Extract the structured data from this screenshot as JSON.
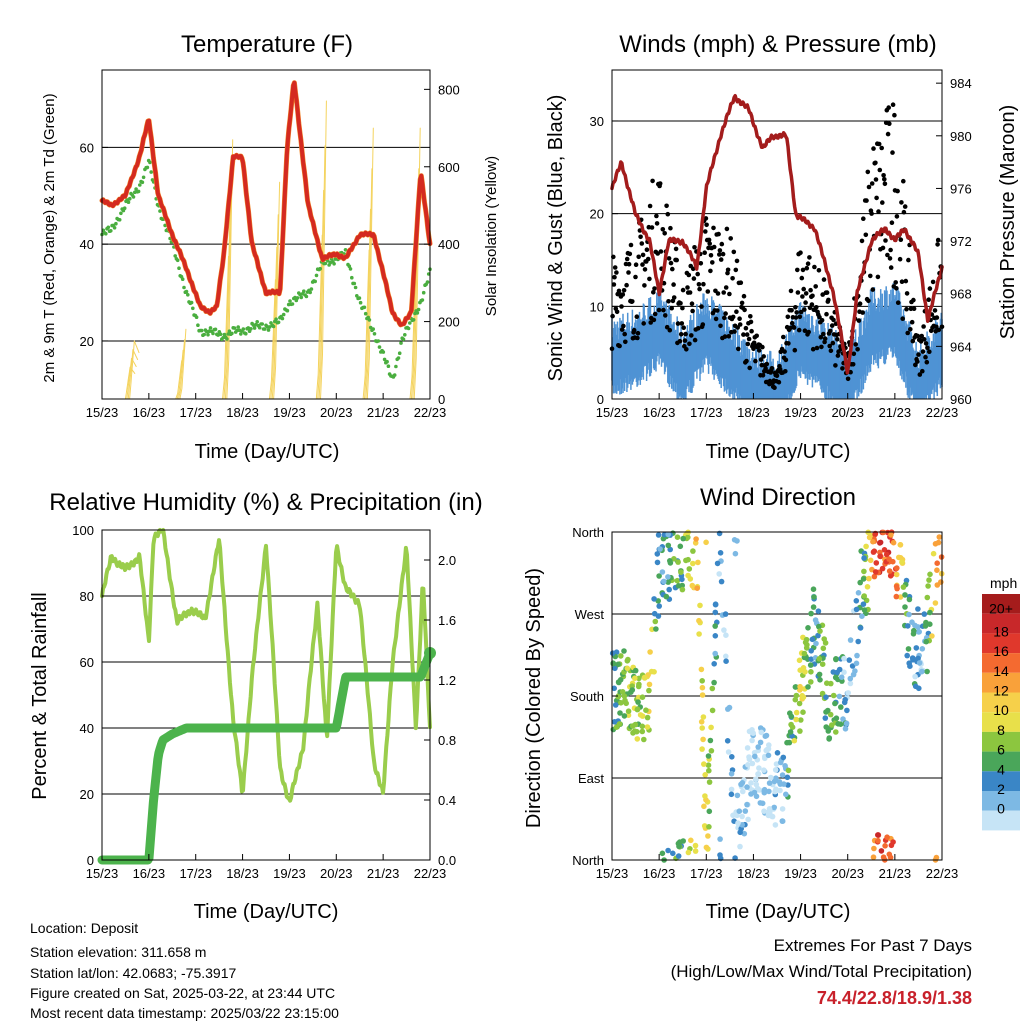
{
  "colors": {
    "temp": "#d42a20",
    "dew": "#4aae3f",
    "solar": "#f4d35e",
    "gust": "#000000",
    "wind": "#4f93d4",
    "pressure": "#a31c1c",
    "rh": "#9acd4c",
    "precip": "#4cb34c",
    "extremes": "#c8202a"
  },
  "x_ticks": [
    "15/23",
    "16/23",
    "17/23",
    "18/23",
    "19/23",
    "20/23",
    "21/23",
    "22/23"
  ],
  "temperature": {
    "title": "Temperature (F)",
    "xlabel": "Time (Day/UTC)",
    "ylabel": "2m & 9m T (Red, Orange) & 2m Td (Green)",
    "ylabel_right": "Solar Insolation (Yellow)",
    "left_ticks": [
      "20",
      "40",
      "60"
    ],
    "right_ticks": [
      "0",
      "200",
      "400",
      "600",
      "800"
    ],
    "ylim": [
      8,
      76
    ],
    "y2lim": [
      0,
      850
    ]
  },
  "winds": {
    "title": "Winds (mph) & Pressure (mb)",
    "xlabel": "Time (Day/UTC)",
    "ylabel": "Sonic Wind & Gust (Blue, Black)",
    "ylabel_right": "Station Pressure (Maroon)",
    "left_ticks": [
      "0",
      "10",
      "20",
      "30"
    ],
    "right_ticks": [
      "960",
      "964",
      "968",
      "972",
      "976",
      "980",
      "984"
    ],
    "ylim": [
      0,
      35.5
    ],
    "y2lim": [
      960,
      985
    ]
  },
  "humidity": {
    "title": "Relative Humidity (%) & Precipitation (in)",
    "xlabel": "Time (Day/UTC)",
    "ylabel": "Percent & Total Rainfall",
    "left_ticks": [
      "0",
      "20",
      "40",
      "60",
      "80",
      "100"
    ],
    "right_ticks": [
      "0.0",
      "0.4",
      "0.8",
      "1.2",
      "1.6",
      "2.0"
    ],
    "ylim": [
      0,
      100
    ],
    "y2lim": [
      0,
      2.2
    ]
  },
  "direction": {
    "title": "Wind Direction",
    "xlabel": "Time (Day/UTC)",
    "ylabel": "Direction (Colored By Speed)",
    "dir_ticks": [
      "North",
      "East",
      "South",
      "West",
      "North"
    ],
    "legend_title": "mph",
    "legend_labels": [
      "20+",
      "18",
      "16",
      "14",
      "12",
      "10",
      "8",
      "6",
      "4",
      "2",
      "0"
    ],
    "legend_colors": [
      "#a51c1c",
      "#c8282a",
      "#e0382c",
      "#f46a30",
      "#f9a13a",
      "#f6d04a",
      "#e8e04a",
      "#8cc63f",
      "#4aa65a",
      "#3a86c6",
      "#7db9e4",
      "#c6e4f6"
    ]
  },
  "info": {
    "location": "Location: Deposit",
    "elevation": "Station elevation: 311.658 m",
    "latlon": "Station lat/lon: 42.0683; -75.3917",
    "created": "Figure created on Sat, 2025-03-22, at 23:44 UTC",
    "timestamp": "Most recent data timestamp: 2025/03/22 23:15:00"
  },
  "extremes": {
    "title": "Extremes For Past 7 Days",
    "subtitle": "(High/Low/Max Wind/Total Precipitation)",
    "values": "74.4/22.8/18.9/1.38"
  },
  "chart_data": [
    {
      "type": "line",
      "title": "Temperature (F)",
      "xlabel": "Time (Day/UTC)",
      "x_unit": "days since 15/23 UTC",
      "ylim": [
        8,
        76
      ],
      "y2lim": [
        0,
        850
      ],
      "series": [
        {
          "name": "2m & 9m T",
          "axis": "left",
          "x": [
            0,
            0.2,
            0.5,
            0.8,
            1.0,
            1.2,
            1.5,
            1.8,
            2.1,
            2.3,
            2.45,
            2.6,
            2.8,
            3.0,
            3.2,
            3.5,
            3.8,
            3.95,
            4.1,
            4.4,
            4.7,
            5.0,
            5.2,
            5.5,
            5.8,
            6.0,
            6.2,
            6.4,
            6.6,
            6.8,
            7.0
          ],
          "y": [
            49,
            48,
            50,
            58,
            66,
            50,
            42,
            35,
            27,
            26,
            27,
            38,
            58,
            58,
            40,
            30,
            30,
            60,
            74,
            48,
            37,
            38,
            37,
            42,
            42,
            34,
            26,
            23,
            26,
            55,
            40
          ]
        },
        {
          "name": "2m Td",
          "axis": "left",
          "x": [
            0,
            0.2,
            0.5,
            0.8,
            1.0,
            1.2,
            1.5,
            1.8,
            2.1,
            2.3,
            2.6,
            2.8,
            3.0,
            3.2,
            3.5,
            3.8,
            4.0,
            4.4,
            4.7,
            5.0,
            5.2,
            5.5,
            5.8,
            6.0,
            6.2,
            6.4,
            6.6,
            6.8,
            7.0
          ],
          "y": [
            42,
            43,
            48,
            52,
            57,
            48,
            40,
            30,
            22,
            22,
            21,
            22,
            22,
            23,
            23,
            24,
            28,
            30,
            36,
            37,
            38,
            28,
            22,
            17,
            12,
            20,
            24,
            28,
            34
          ]
        },
        {
          "name": "Solar Insolation",
          "axis": "right",
          "x": [
            0.5,
            0.6,
            0.7,
            0.85,
            1.6,
            1.7,
            1.85,
            2.6,
            2.7,
            2.85,
            3.6,
            3.7,
            3.85,
            4.6,
            4.7,
            4.85,
            5.6,
            5.7,
            5.85,
            6.6,
            6.7,
            6.85
          ],
          "y": [
            0,
            150,
            120,
            0,
            0,
            180,
            0,
            0,
            670,
            0,
            0,
            560,
            0,
            0,
            770,
            0,
            0,
            700,
            0,
            0,
            700,
            0
          ]
        }
      ]
    },
    {
      "type": "line",
      "title": "Winds (mph) & Pressure (mb)",
      "xlabel": "Time (Day/UTC)",
      "x_unit": "days since 15/23 UTC",
      "ylim": [
        0,
        35.5
      ],
      "y2lim": [
        960,
        985
      ],
      "series": [
        {
          "name": "Sonic Wind",
          "axis": "left",
          "x": [
            0,
            0.5,
            1.0,
            1.5,
            2.0,
            2.5,
            3.0,
            3.5,
            4.0,
            4.5,
            5.0,
            5.5,
            6.0,
            6.5,
            7.0
          ],
          "y": [
            5,
            6,
            8,
            4,
            8,
            5,
            2,
            1,
            7,
            5,
            2,
            8,
            9,
            2,
            6
          ]
        },
        {
          "name": "Gust",
          "axis": "left",
          "x": [
            0,
            0.5,
            1.0,
            1.5,
            2.0,
            2.5,
            3.0,
            3.5,
            4.0,
            4.5,
            5.0,
            5.5,
            6.0,
            6.5,
            7.0
          ],
          "y": [
            12,
            14,
            20,
            10,
            16,
            14,
            6,
            2,
            14,
            10,
            4,
            22,
            26,
            5,
            15
          ]
        },
        {
          "name": "Station Pressure",
          "axis": "right",
          "x": [
            0,
            0.2,
            0.5,
            0.8,
            1.0,
            1.2,
            1.5,
            1.8,
            2.0,
            2.3,
            2.6,
            2.9,
            3.2,
            3.4,
            3.7,
            3.9,
            4.3,
            4.7,
            5.0,
            5.2,
            5.5,
            5.8,
            6.0,
            6.2,
            6.5,
            6.7,
            7.0
          ],
          "y": [
            976,
            978,
            974,
            972,
            968,
            972,
            972,
            970,
            976,
            980,
            983,
            982,
            979,
            980,
            980,
            974,
            973,
            968,
            962,
            968,
            972,
            973,
            972,
            973,
            971,
            966,
            970
          ]
        }
      ]
    },
    {
      "type": "line",
      "title": "Relative Humidity (%) & Precipitation (in)",
      "xlabel": "Time (Day/UTC)",
      "x_unit": "days since 15/23 UTC",
      "ylim": [
        0,
        100
      ],
      "y2lim": [
        0,
        2.2
      ],
      "series": [
        {
          "name": "Relative Humidity",
          "axis": "left",
          "x": [
            0,
            0.2,
            0.5,
            0.8,
            1.0,
            1.1,
            1.3,
            1.6,
            1.9,
            2.2,
            2.5,
            2.8,
            3.0,
            3.2,
            3.5,
            3.8,
            4.0,
            4.3,
            4.6,
            4.8,
            5.0,
            5.2,
            5.5,
            5.8,
            6.0,
            6.2,
            6.5,
            6.7,
            6.85,
            7.0
          ],
          "y": [
            80,
            92,
            88,
            92,
            66,
            98,
            100,
            72,
            76,
            73,
            97,
            42,
            20,
            55,
            96,
            28,
            17,
            35,
            78,
            36,
            96,
            82,
            78,
            30,
            20,
            60,
            95,
            40,
            85,
            40
          ]
        },
        {
          "name": "Total Rainfall",
          "axis": "right",
          "x": [
            0,
            1.0,
            1.1,
            1.2,
            1.3,
            1.5,
            1.8,
            5.0,
            5.2,
            6.8,
            7.0
          ],
          "y": [
            0,
            0,
            0.4,
            0.7,
            0.8,
            0.84,
            0.88,
            0.88,
            1.22,
            1.22,
            1.38
          ]
        }
      ]
    },
    {
      "type": "scatter",
      "title": "Wind Direction",
      "xlabel": "Time (Day/UTC)",
      "x_unit": "days since 15/23 UTC",
      "y_unit": "degrees",
      "series": [
        {
          "name": "direction",
          "x": [
            0.1,
            0.3,
            0.5,
            0.8,
            1.0,
            1.5,
            1.8,
            2.0,
            2.3,
            2.6,
            3.0,
            3.3,
            3.6,
            4.0,
            4.3,
            4.6,
            5.0,
            5.3,
            5.6,
            6.0,
            6.3,
            6.6,
            6.9
          ],
          "y": [
            185,
            200,
            165,
            180,
            320,
            340,
            345,
            20,
            350,
            10,
            120,
            90,
            70,
            190,
            260,
            175,
            190,
            300,
            345,
            340,
            250,
            220,
            330
          ],
          "speed": [
            6,
            8,
            8,
            10,
            4,
            6,
            12,
            10,
            2,
            2,
            0,
            0,
            2,
            10,
            4,
            8,
            2,
            4,
            18,
            16,
            4,
            2,
            14
          ]
        }
      ]
    }
  ]
}
